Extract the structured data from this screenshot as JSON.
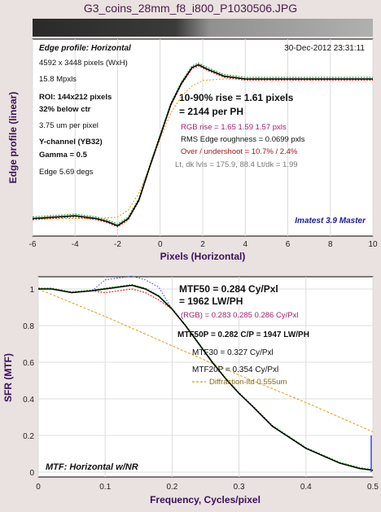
{
  "window_title": "G3_coins_28mm_f8_i800_P1030506.JPG",
  "top": {
    "heading": "Edge profile: Horizontal",
    "timestamp": "30-Dec-2012 23:31:11",
    "left_info": [
      "4592 x 3448 pixels (WxH)",
      "15.8 Mpxls",
      "ROI:  144x212 pixels",
      "32% below ctr",
      "3.75 um per pixel",
      "Y-channel  (YB32)",
      "Gamma = 0.5",
      "Edge 5.69 degs"
    ],
    "rise_line1": "10-90% rise = 1.61 pixels",
    "rise_line2": "= 2144 per PH",
    "rgb_rise": "RGB rise = 1.65  1.59  1.57 pxls",
    "rms": "RMS Edge roughness = 0.0699 pxls",
    "overshoot": "Over / undershoot = 10.7% / 2.4%",
    "levels": "Lt, dk lvls = 175.9, 88.4   Lt/dk = 1.99",
    "brand": "Imatest 3.9 Master",
    "ylabel": "Edge profile (linear)",
    "xlabel": "Pixels (Horizontal)"
  },
  "bottom": {
    "ylabel": "SFR (MTF)",
    "xlabel": "Frequency, Cycles/pixel",
    "mtf50_line1": "MTF50 = 0.284 Cy/Pxl",
    "mtf50_line2": "= 1962 LW/PH",
    "rgb_mtf": "(RGB) = 0.283  0.285  0.286 Cy/Pxl",
    "mtf50p": "MTF50P = 0.282 C/P = 1947 LW/PH",
    "mtf30": "MTF30 = 0.327 Cy/Pxl",
    "mtf20p": "MTF20P = 0.354 Cy/Pxl",
    "diffraction": "Diffraction-ltd  0.555um",
    "footer": "MTF: Horizontal w/NR"
  },
  "colors": {
    "luma": "#000000",
    "red": "#e0302a",
    "green": "#22b022",
    "blue": "#3040e0",
    "diffraction": "#d4a010"
  },
  "chart_data": [
    {
      "type": "line",
      "title": "Edge profile: Horizontal",
      "xlabel": "Pixels (Horizontal)",
      "ylabel": "Edge profile (linear)",
      "xlim": [
        -6,
        10
      ],
      "x_ticks": [
        -6,
        -4,
        -2,
        0,
        2,
        4,
        6,
        8,
        10
      ],
      "series": [
        {
          "name": "Y",
          "x": [
            -6,
            -5,
            -4,
            -3,
            -2.5,
            -2,
            -1.5,
            -1,
            -0.5,
            0,
            0.5,
            1,
            1.5,
            1.8,
            2.2,
            3,
            4,
            5,
            6,
            8,
            10
          ],
          "y": [
            0.02,
            0.03,
            0.04,
            0.02,
            0.0,
            -0.03,
            0.02,
            0.15,
            0.38,
            0.6,
            0.82,
            0.97,
            1.08,
            1.1,
            1.07,
            1.02,
            1.0,
            1.0,
            1.0,
            1.0,
            1.0
          ]
        }
      ]
    },
    {
      "type": "line",
      "title": "MTF: Horizontal w/NR",
      "xlabel": "Frequency, Cycles/pixel",
      "ylabel": "SFR (MTF)",
      "xlim": [
        0,
        0.5
      ],
      "ylim": [
        0,
        1.05
      ],
      "x_ticks": [
        0,
        0.1,
        0.2,
        0.3,
        0.4,
        0.5
      ],
      "y_ticks": [
        0,
        0.2,
        0.4,
        0.6,
        0.8,
        1
      ],
      "series": [
        {
          "name": "Y",
          "x": [
            0,
            0.02,
            0.05,
            0.08,
            0.1,
            0.12,
            0.14,
            0.16,
            0.18,
            0.2,
            0.22,
            0.24,
            0.26,
            0.28,
            0.3,
            0.32,
            0.35,
            0.4,
            0.45,
            0.48,
            0.5
          ],
          "y": [
            1.0,
            1.0,
            0.98,
            0.99,
            1.0,
            1.01,
            1.02,
            1.0,
            0.96,
            0.89,
            0.8,
            0.7,
            0.6,
            0.51,
            0.43,
            0.36,
            0.25,
            0.13,
            0.05,
            0.02,
            0.01
          ]
        },
        {
          "name": "Diffraction-ltd",
          "x": [
            0,
            0.1,
            0.2,
            0.3,
            0.4,
            0.5
          ],
          "y": [
            1.0,
            0.85,
            0.69,
            0.53,
            0.38,
            0.22
          ]
        }
      ]
    }
  ]
}
